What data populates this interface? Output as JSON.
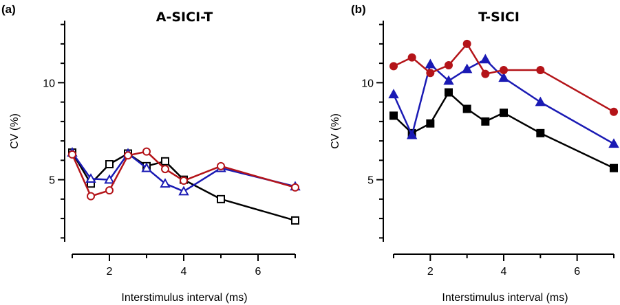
{
  "colors": {
    "black": "#000000",
    "blue": "#1a1ab4",
    "red": "#b41419"
  },
  "chart_data": [
    {
      "type": "line",
      "panel_label": "(a)",
      "title": "A-SICI-T",
      "xlabel": "Interstimulus interval (ms)",
      "ylabel": "CV (%)",
      "xlim": [
        1,
        7
      ],
      "ylim": [
        1.8,
        13.2
      ],
      "xticks": [
        2,
        4,
        6
      ],
      "yticks": [
        5,
        10
      ],
      "marker_fill": "open",
      "series": [
        {
          "color": "black",
          "marker": "square",
          "x": [
            1,
            1.5,
            2,
            2.5,
            3,
            3.5,
            4,
            5,
            7
          ],
          "y": [
            6.4,
            4.8,
            5.8,
            6.35,
            5.7,
            5.95,
            5.0,
            4.0,
            2.9
          ]
        },
        {
          "color": "blue",
          "marker": "triangle",
          "x": [
            1,
            1.5,
            2,
            2.5,
            3,
            3.5,
            4,
            5,
            7
          ],
          "y": [
            6.4,
            5.05,
            5.0,
            6.35,
            5.6,
            4.8,
            4.4,
            5.6,
            4.65
          ]
        },
        {
          "color": "red",
          "marker": "circle",
          "x": [
            1,
            1.5,
            2,
            2.5,
            3,
            3.5,
            4,
            5,
            7
          ],
          "y": [
            6.3,
            4.15,
            4.45,
            6.25,
            6.45,
            5.55,
            4.95,
            5.7,
            4.6
          ]
        }
      ]
    },
    {
      "type": "line",
      "panel_label": "(b)",
      "title": "T-SICI",
      "xlabel": "Interstimulus interval (ms)",
      "ylabel": "CV (%)",
      "xlim": [
        1,
        7
      ],
      "ylim": [
        1.8,
        13.2
      ],
      "xticks": [
        2,
        4,
        6
      ],
      "yticks": [
        5,
        10
      ],
      "marker_fill": "filled",
      "series": [
        {
          "color": "black",
          "marker": "square",
          "x": [
            1,
            1.5,
            2,
            2.5,
            3,
            3.5,
            4,
            5,
            7
          ],
          "y": [
            8.3,
            7.4,
            7.9,
            9.5,
            8.65,
            8.0,
            8.45,
            7.4,
            5.6
          ]
        },
        {
          "color": "blue",
          "marker": "triangle",
          "x": [
            1,
            1.5,
            2,
            2.5,
            3,
            3.5,
            4,
            5,
            7
          ],
          "y": [
            9.4,
            7.3,
            10.95,
            10.1,
            10.7,
            11.2,
            10.25,
            9.0,
            6.85
          ]
        },
        {
          "color": "red",
          "marker": "circle",
          "x": [
            1,
            1.5,
            2,
            2.5,
            3,
            3.5,
            4,
            5,
            7
          ],
          "y": [
            10.85,
            11.3,
            10.5,
            10.9,
            12.0,
            10.45,
            10.65,
            10.65,
            8.5
          ]
        }
      ]
    }
  ]
}
